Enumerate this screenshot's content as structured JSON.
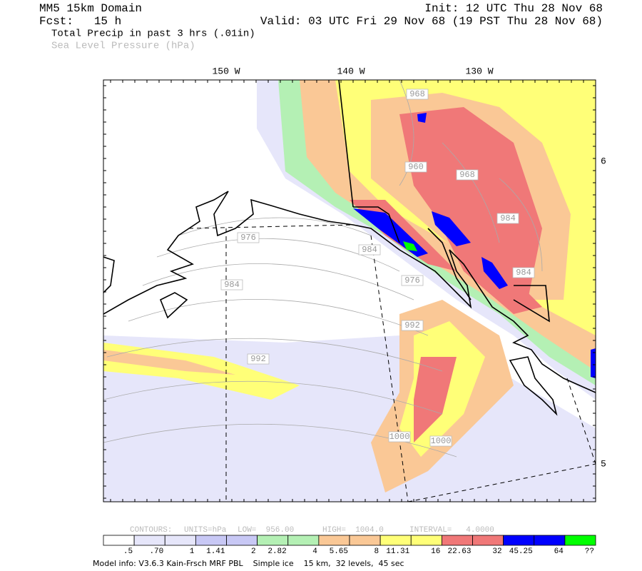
{
  "header": {
    "domain": "MM5 15km Domain",
    "forecast": "Fcst:   15 h",
    "field1": "Total Precip in past 3 hrs (.01in)",
    "field2": "Sea Level Pressure (hPa)",
    "init": "Init: 12 UTC Thu 28 Nov 68",
    "valid": "Valid: 03 UTC Fri 29 Nov 68 (19 PST Thu 28 Nov 68)"
  },
  "map": {
    "longitude_labels": [
      "150 W",
      "140 W",
      "130 W"
    ],
    "latitude_labels": [
      "6",
      "5"
    ],
    "contour_labels": [
      "968",
      "960",
      "968",
      "976",
      "984",
      "984",
      "976",
      "984",
      "984",
      "992",
      "992",
      "1000",
      "1000"
    ]
  },
  "contours_info": {
    "contours": "CONTOURS:",
    "units": "UNITS=hPa",
    "low": "LOW=  956.00",
    "high": "HIGH=  1004.0",
    "interval": "INTERVAL=   4.0000"
  },
  "colorbar": {
    "labels": [
      ".5",
      ".70",
      "1",
      "1.41",
      "2",
      "2.82",
      "4",
      "5.65",
      "8",
      "11.31",
      "16",
      "22.63",
      "32",
      "45.25",
      "64",
      "??"
    ],
    "colors": [
      "#ffffff",
      "#e6e6fa",
      "#e6e6fa",
      "#c8c8f5",
      "#c8c8f5",
      "#b4f0b4",
      "#b4f0b4",
      "#fac896",
      "#fac896",
      "#ffff78",
      "#ffff78",
      "#f07878",
      "#f07878",
      "#0000ff",
      "#0000ff",
      "#00ff00"
    ]
  },
  "footer": "Model info: V3.6.3 Kain-Frsch MRF PBL    Simple ice    15 km,  32 levels,  45 sec"
}
